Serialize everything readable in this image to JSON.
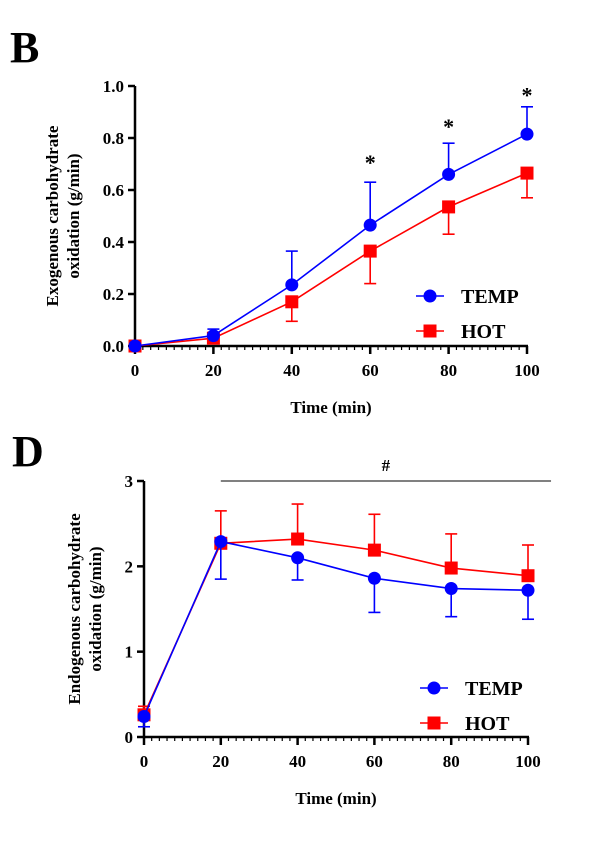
{
  "colors": {
    "TEMP": "#0000ff",
    "HOT": "#ff0000",
    "axis": "#000000"
  },
  "chart_data": [
    {
      "panel": "B",
      "type": "line",
      "xlabel": "Time (min)",
      "ylabel_lines": [
        "Exogenous carbohydrate",
        "oxidation (g/min)"
      ],
      "x": [
        0,
        20,
        40,
        60,
        80,
        100
      ],
      "xlim": [
        0,
        100
      ],
      "ylim": [
        0,
        1.0
      ],
      "xticks": [
        "0",
        "20",
        "40",
        "60",
        "80",
        "100"
      ],
      "yticks": [
        "0.0",
        "0.2",
        "0.4",
        "0.6",
        "0.8",
        "1.0"
      ],
      "ytick_values": [
        0,
        0.2,
        0.4,
        0.6,
        0.8,
        1.0
      ],
      "series": [
        {
          "name": "TEMP",
          "marker": "circle",
          "values": [
            0,
            0.04,
            0.235,
            0.465,
            0.66,
            0.815
          ],
          "error": [
            0.005,
            0.025,
            0.13,
            0.165,
            0.12,
            0.105
          ],
          "error_dir": "up"
        },
        {
          "name": "HOT",
          "marker": "square",
          "values": [
            0,
            0.03,
            0.17,
            0.365,
            0.535,
            0.665
          ],
          "error": [
            0.005,
            0.01,
            0.075,
            0.125,
            0.105,
            0.095
          ],
          "error_dir": "down"
        }
      ],
      "annotations": [
        {
          "text": "*",
          "x": 60,
          "y": 0.73
        },
        {
          "text": "*",
          "x": 80,
          "y": 0.87
        },
        {
          "text": "*",
          "x": 100,
          "y": 0.99
        }
      ],
      "legend": "bottom-right"
    },
    {
      "panel": "D",
      "type": "line",
      "xlabel": "Time (min)",
      "ylabel_lines": [
        "Endogenous carbohydrate",
        "oxidation (g/min)"
      ],
      "x": [
        0,
        20,
        40,
        60,
        80,
        100
      ],
      "xlim": [
        0,
        100
      ],
      "ylim": [
        0,
        3
      ],
      "xticks": [
        "0",
        "20",
        "40",
        "60",
        "80",
        "100"
      ],
      "yticks": [
        "0",
        "1",
        "2",
        "3"
      ],
      "ytick_values": [
        0,
        1,
        2,
        3
      ],
      "series": [
        {
          "name": "TEMP",
          "marker": "circle",
          "values": [
            0.24,
            2.29,
            2.1,
            1.86,
            1.74,
            1.72
          ],
          "error": [
            0.12,
            0.44,
            0.26,
            0.4,
            0.33,
            0.34
          ],
          "error_dir": "down"
        },
        {
          "name": "HOT",
          "marker": "square",
          "values": [
            0.26,
            2.27,
            2.32,
            2.19,
            1.98,
            1.89
          ],
          "error": [
            0.1,
            0.38,
            0.41,
            0.42,
            0.4,
            0.36
          ],
          "error_dir": "up"
        }
      ],
      "significance_bar": {
        "text": "#",
        "x_from": 20,
        "x_to": 106,
        "y": 3.0
      },
      "legend": "bottom-right"
    }
  ]
}
